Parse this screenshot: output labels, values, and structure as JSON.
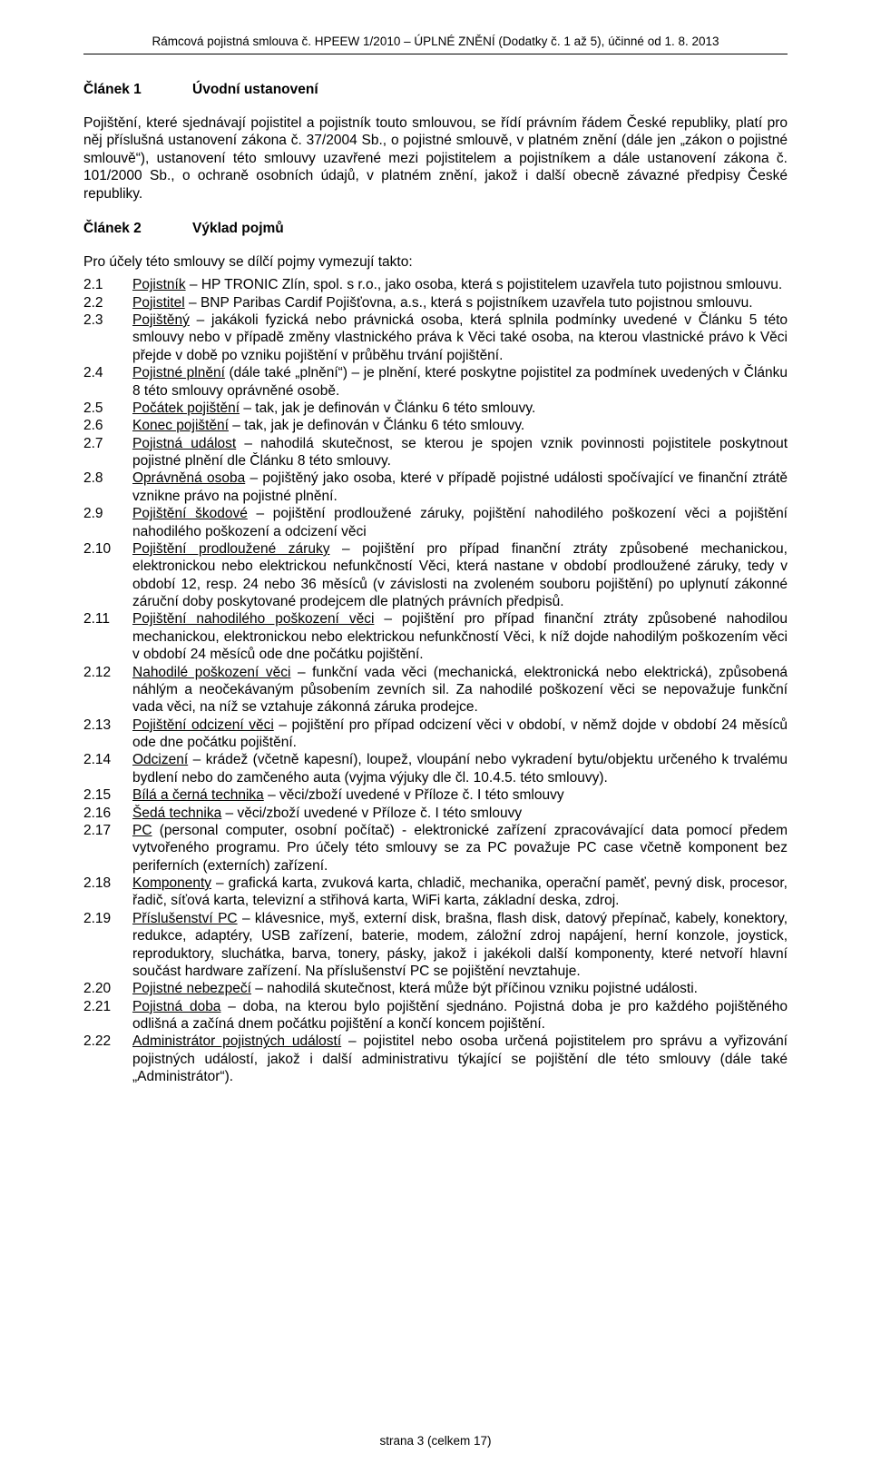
{
  "header": "Rámcová pojistná smlouva č. HPEEW 1/2010 – ÚPLNÉ ZNĚNÍ (Dodatky č. 1 až 5), účinné od 1. 8. 2013",
  "article1": {
    "num": "Článek 1",
    "title": "Úvodní ustanovení",
    "text": "Pojištění, které sjednávají pojistitel a pojistník touto smlouvou, se řídí právním řádem České republiky, platí pro něj příslušná ustanovení zákona č. 37/2004 Sb., o pojistné smlouvě, v platném znění (dále jen „zákon o pojistné smlouvě“), ustanovení této smlouvy uzavřené mezi pojistitelem a pojistníkem a dále ustanovení zákona č. 101/2000 Sb., o ochraně osobních údajů, v platném znění, jakož i další obecně závazné předpisy České republiky."
  },
  "article2": {
    "num": "Článek 2",
    "title": "Výklad pojmů",
    "intro": "Pro účely této smlouvy se dílčí pojmy vymezují takto:",
    "items": [
      {
        "n": "2.1",
        "u": "Pojistník",
        "t": " – HP TRONIC Zlín, spol. s r.o., jako osoba, která s pojistitelem uzavřela tuto pojistnou smlouvu."
      },
      {
        "n": "2.2",
        "u": "Pojistitel",
        "t": " – BNP Paribas Cardif Pojišťovna, a.s., která s pojistníkem uzavřela tuto pojistnou smlouvu."
      },
      {
        "n": "2.3",
        "u": "Pojištěný",
        "t": " – jakákoli fyzická nebo právnická osoba, která splnila podmínky uvedené v Článku 5 této smlouvy nebo v případě změny vlastnického práva k Věci také osoba, na kterou vlastnické právo k Věci přejde v době po vzniku pojištění v průběhu trvání pojištění."
      },
      {
        "n": "2.4",
        "u": "Pojistné plnění",
        "t": " (dále také „plnění“) – je plnění, které poskytne pojistitel za podmínek uvedených v Článku 8 této smlouvy oprávněné osobě."
      },
      {
        "n": "2.5",
        "u": "Počátek pojištění",
        "t": " – tak, jak je definován v Článku 6 této smlouvy."
      },
      {
        "n": "2.6",
        "u": "Konec pojištění",
        "t": " – tak, jak je definován v Článku 6 této smlouvy."
      },
      {
        "n": "2.7",
        "u": "Pojistná událost",
        "t": " – nahodilá skutečnost, se kterou je spojen vznik povinnosti pojistitele poskytnout pojistné plnění dle Článku 8 této smlouvy."
      },
      {
        "n": "2.8",
        "u": "Oprávněná osoba",
        "t": " – pojištěný jako osoba, které v případě pojistné události spočívající ve finanční ztrátě vznikne právo na pojistné plnění."
      },
      {
        "n": "2.9",
        "u": "Pojištění škodové",
        "t": " – pojištění prodloužené záruky, pojištění nahodilého poškození věci a pojištění nahodilého poškození a odcizení věci"
      },
      {
        "n": "2.10",
        "u": "Pojištění prodloužené záruky",
        "t": " – pojištění pro případ finanční ztráty způsobené mechanickou, elektronickou nebo elektrickou nefunkčností Věci, která nastane v období prodloužené záruky, tedy v období 12, resp. 24 nebo 36 měsíců (v závislosti na zvoleném souboru pojištění) po uplynutí zákonné záruční doby poskytované prodejcem dle platných právních předpisů."
      },
      {
        "n": "2.11",
        "u": "Pojištění nahodilého poškození věci",
        "t": " – pojištění pro případ finanční ztráty způsobené nahodilou mechanickou, elektronickou nebo elektrickou nefunkčností Věci, k níž dojde nahodilým poškozením věci v období 24 měsíců ode dne počátku pojištění."
      },
      {
        "n": "2.12",
        "u": "Nahodilé poškození věci",
        "t": " – funkční vada věci (mechanická, elektronická nebo elektrická), způsobená náhlým a neočekávaným působením zevních sil. Za nahodilé poškození věci se nepovažuje funkční vada věci, na níž se vztahuje zákonná záruka prodejce."
      },
      {
        "n": "2.13",
        "u": "Pojištění odcizení věci",
        "t": " – pojištění pro případ odcizení věci v období, v němž dojde v období 24 měsíců ode dne počátku pojištění."
      },
      {
        "n": "2.14",
        "u": "Odcizení",
        "t": " – krádež (včetně kapesní), loupež, vloupání nebo vykradení bytu/objektu určeného k trvalému bydlení nebo do zamčeného auta (vyjma výjuky dle čl. 10.4.5. této smlouvy)."
      },
      {
        "n": "2.15",
        "u": "Bílá a černá technika",
        "t": " – věci/zboží uvedené v Příloze č. I této smlouvy"
      },
      {
        "n": "2.16",
        "u": "Šedá technika",
        "t": " – věci/zboží uvedené v Příloze č. I této smlouvy"
      },
      {
        "n": "2.17",
        "u": "PC",
        "t": " (personal computer, osobní počítač) - elektronické zařízení zpracovávající data pomocí předem vytvořeného programu. Pro účely této smlouvy se za PC považuje PC case včetně komponent bez periferních (externích) zařízení."
      },
      {
        "n": "2.18",
        "u": "Komponenty",
        "t": " – grafická karta, zvuková karta, chladič, mechanika, operační paměť, pevný disk, procesor, řadič, síťová karta, televizní a střihová karta, WiFi karta, základní deska, zdroj."
      },
      {
        "n": "2.19",
        "u": "Příslušenství PC",
        "t": " – klávesnice, myš, externí disk, brašna, flash disk, datový přepínač, kabely, konektory, redukce, adaptéry, USB zařízení, baterie, modem, záložní zdroj napájení, herní konzole, joystick, reproduktory, sluchátka, barva, tonery, pásky, jakož i jakékoli další komponenty, které netvoří hlavní součást hardware zařízení. Na příslušenství PC se pojištění nevztahuje."
      },
      {
        "n": "2.20",
        "u": "Pojistné nebezpečí",
        "t": " – nahodilá skutečnost, která může být příčinou vzniku pojistné události."
      },
      {
        "n": "2.21",
        "u": "Pojistná doba",
        "t": " – doba, na kterou bylo pojištění sjednáno. Pojistná doba je pro každého pojištěného odlišná a začíná dnem počátku pojištění a končí koncem pojištění."
      },
      {
        "n": "2.22",
        "u": "Administrátor pojistných událostí",
        "t": " – pojistitel nebo osoba určená pojistitelem pro správu a vyřizování pojistných událostí, jakož i další administrativu týkající se pojištění dle této smlouvy (dále také „Administrátor“)."
      }
    ]
  },
  "footer": "strana 3 (celkem 17)"
}
